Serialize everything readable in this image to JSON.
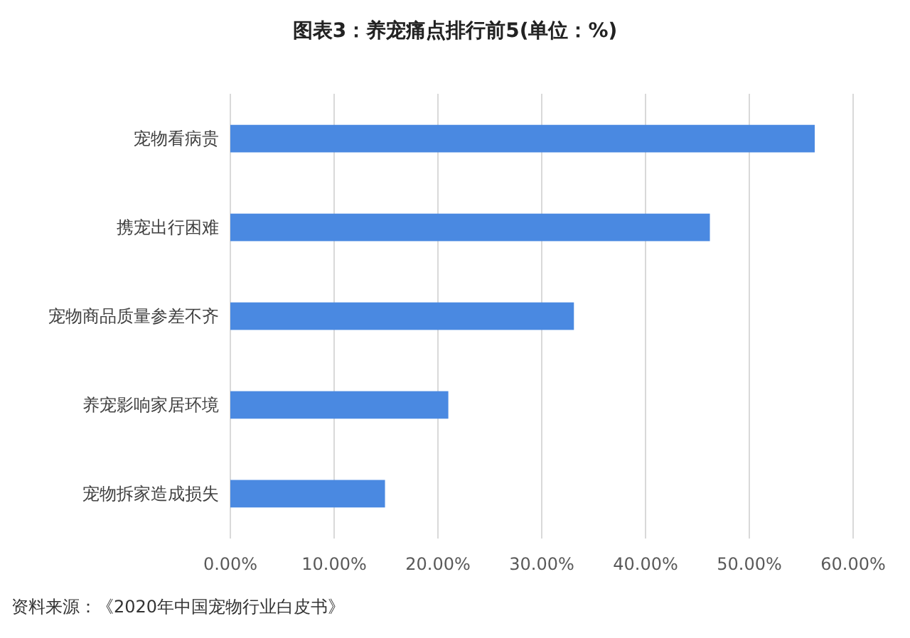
{
  "chart_data": {
    "type": "bar",
    "orientation": "horizontal",
    "title": "图表3：养宠痛点排行前5(单位：%)",
    "categories": [
      "宠物看病贵",
      "携宠出行困难",
      "宠物商品质量参差不齐",
      "养宠影响家居环境",
      "宠物拆家造成损失"
    ],
    "values": [
      56.3,
      46.2,
      33.1,
      21.0,
      14.9
    ],
    "color": "#4a89e1",
    "xlim": [
      0,
      60
    ],
    "xticks": [
      {
        "value": 0,
        "label": "0.00%"
      },
      {
        "value": 10,
        "label": "10.00%"
      },
      {
        "value": 20,
        "label": "20.00%"
      },
      {
        "value": 30,
        "label": "30.00%"
      },
      {
        "value": 40,
        "label": "40.00%"
      },
      {
        "value": 50,
        "label": "50.00%"
      },
      {
        "value": 60,
        "label": "60.00%"
      }
    ],
    "grid": "x",
    "annotations": [
      "资料来源：《2020年中国宠物行业白皮书》"
    ]
  }
}
